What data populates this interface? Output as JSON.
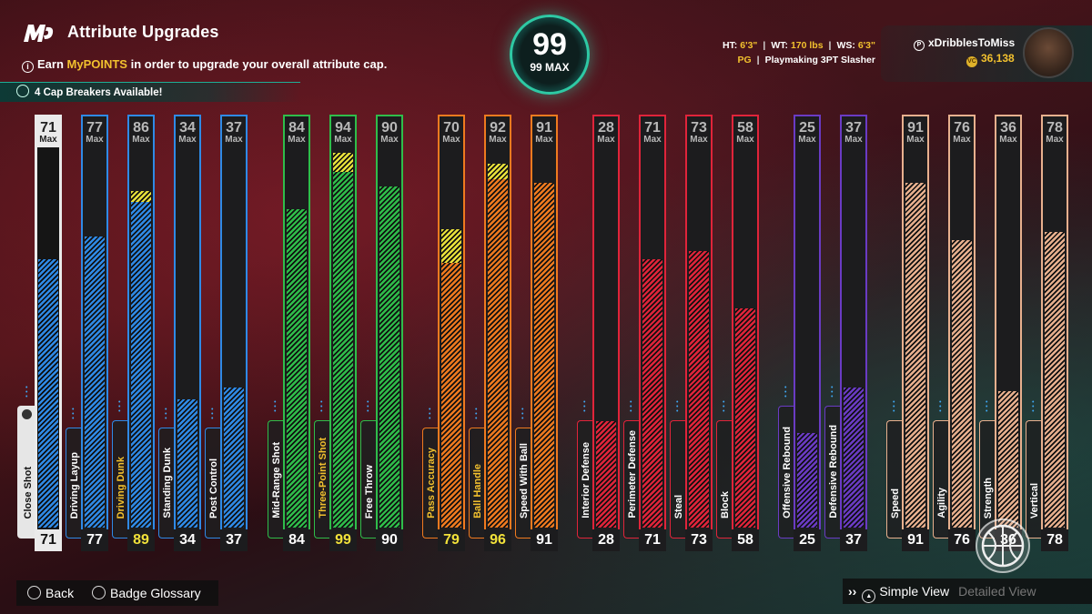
{
  "header": {
    "title": "Attribute Upgrades",
    "subtitle_pre": "Earn ",
    "subtitle_highlight": "MyPOINTS",
    "subtitle_post": " in order to upgrade your overall attribute cap.",
    "cap_breakers": "4 Cap Breakers Available!"
  },
  "overall": {
    "value": "99",
    "max_label": "99 MAX"
  },
  "bio": {
    "ht_label": "HT:",
    "ht": "6'3\"",
    "wt_label": "WT:",
    "wt": "170 lbs",
    "ws_label": "WS:",
    "ws": "6'3\"",
    "position": "PG",
    "archetype": "Playmaking 3PT Slasher"
  },
  "profile": {
    "gamertag": "xDribblesToMiss",
    "vc": "36,138"
  },
  "max_label": "Max",
  "colors": {
    "finishing": "#2f8ae6",
    "shooting": "#2fbd4a",
    "playmaking": "#ef7a1f",
    "defense": "#e0243a",
    "rebounding": "#6a3bc4",
    "physical": "#e8b08e",
    "selected": "#eaeaea",
    "upgrade": "#e8e13a"
  },
  "attributes": [
    {
      "name": "Close Shot",
      "cap": "71",
      "current": "71",
      "boost": 0,
      "group": "finishing",
      "selected": true
    },
    {
      "name": "Driving Layup",
      "cap": "77",
      "current": "77",
      "boost": 0,
      "group": "finishing"
    },
    {
      "name": "Driving Dunk",
      "cap": "86",
      "current": "89",
      "boost": 3,
      "group": "finishing",
      "upgraded": true
    },
    {
      "name": "Standing Dunk",
      "cap": "34",
      "current": "34",
      "boost": 0,
      "group": "finishing"
    },
    {
      "name": "Post Control",
      "cap": "37",
      "current": "37",
      "boost": 0,
      "group": "finishing"
    },
    {
      "name": "Mid-Range Shot",
      "cap": "84",
      "current": "84",
      "boost": 0,
      "group": "shooting"
    },
    {
      "name": "Three-Point Shot",
      "cap": "94",
      "current": "99",
      "boost": 5,
      "group": "shooting",
      "upgraded": true
    },
    {
      "name": "Free Throw",
      "cap": "90",
      "current": "90",
      "boost": 0,
      "group": "shooting"
    },
    {
      "name": "Pass Accuracy",
      "cap": "70",
      "current": "79",
      "boost": 9,
      "group": "playmaking",
      "upgraded": true
    },
    {
      "name": "Ball Handle",
      "cap": "92",
      "current": "96",
      "boost": 4,
      "group": "playmaking",
      "upgraded": true
    },
    {
      "name": "Speed With Ball",
      "cap": "91",
      "current": "91",
      "boost": 0,
      "group": "playmaking"
    },
    {
      "name": "Interior Defense",
      "cap": "28",
      "current": "28",
      "boost": 0,
      "group": "defense"
    },
    {
      "name": "Perimeter Defense",
      "cap": "71",
      "current": "71",
      "boost": 0,
      "group": "defense"
    },
    {
      "name": "Steal",
      "cap": "73",
      "current": "73",
      "boost": 0,
      "group": "defense"
    },
    {
      "name": "Block",
      "cap": "58",
      "current": "58",
      "boost": 0,
      "group": "defense"
    },
    {
      "name": "Offensive Rebound",
      "cap": "25",
      "current": "25",
      "boost": 0,
      "group": "rebounding"
    },
    {
      "name": "Defensive Rebound",
      "cap": "37",
      "current": "37",
      "boost": 0,
      "group": "rebounding"
    },
    {
      "name": "Speed",
      "cap": "91",
      "current": "91",
      "boost": 0,
      "group": "physical"
    },
    {
      "name": "Agility",
      "cap": "76",
      "current": "76",
      "boost": 0,
      "group": "physical"
    },
    {
      "name": "Strength",
      "cap": "36",
      "current": "36",
      "boost": 0,
      "group": "physical"
    },
    {
      "name": "Vertical",
      "cap": "78",
      "current": "78",
      "boost": 0,
      "group": "physical"
    }
  ],
  "footer": {
    "back": "Back",
    "badge_glossary": "Badge Glossary",
    "simple_view": "Simple View",
    "detailed_view": "Detailed View"
  },
  "icons": {
    "logo": "mc-logo-icon",
    "info": "info-icon",
    "cap_breaker": "cap-breaker-icon",
    "coin": "vc-coin-icon",
    "playstation": "playstation-icon",
    "lock": "lock-icon",
    "circle_button": "circle-button-icon",
    "square_button": "square-button-icon",
    "triangle_button": "triangle-button-icon",
    "basketball": "basketball-icon"
  }
}
